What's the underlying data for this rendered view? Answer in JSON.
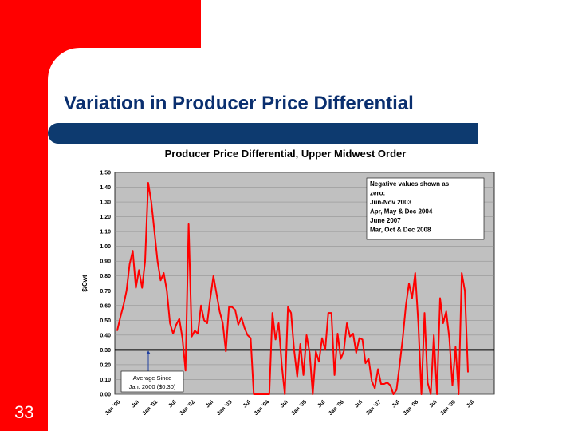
{
  "slide": {
    "title": "Variation in Producer Price Differential",
    "page_number": "33",
    "colors": {
      "red": "#ff0000",
      "navy_bar": "#0d3a6f",
      "title_text": "#0a2f6f"
    }
  },
  "chart_data": {
    "type": "line",
    "title": "Producer Price Differential, Upper Midwest Order",
    "ylabel": "$/Cwt",
    "xlabel": "",
    "ylim": [
      0,
      1.5
    ],
    "y_ticks": [
      "0.00",
      "0.10",
      "0.20",
      "0.30",
      "0.40",
      "0.50",
      "0.60",
      "0.70",
      "0.80",
      "0.90",
      "1.00",
      "1.10",
      "1.20",
      "1.30",
      "1.40",
      "1.50"
    ],
    "x_tick_labels": [
      "Jan '00",
      "Jul",
      "Jan '01",
      "Jul",
      "Jan '02",
      "Jul",
      "Jan '03",
      "Jul",
      "Jan '04",
      "Jul",
      "Jan '05",
      "Jul",
      "Jan '06",
      "Jul",
      "Jan '07",
      "Jul",
      "Jan '08",
      "Jul",
      "Jan '09",
      "Jul"
    ],
    "x_start": "Jan 2000",
    "x_end": "Dec 2009",
    "grid": true,
    "line_color": "#ff0000",
    "plot_background": "#c0c0c0",
    "average": {
      "value": 0.3,
      "label": "Average Since Jan. 2000 ($0.30)",
      "color": "#000000"
    },
    "note": {
      "lines": [
        "Negative values shown as",
        "zero:",
        "Jun-Nov 2003",
        "Apr, May & Dec 2004",
        "June 2007",
        "Mar, Oct & Dec  2008"
      ]
    },
    "series": [
      {
        "values": [
          0.43,
          0.52,
          0.6,
          0.7,
          0.88,
          0.97,
          0.72,
          0.84,
          0.72,
          0.9,
          1.43,
          1.3,
          1.1,
          0.9,
          0.77,
          0.82,
          0.7,
          0.48,
          0.41,
          0.47,
          0.51,
          0.38,
          0.16,
          1.15,
          0.39,
          0.43,
          0.41,
          0.6,
          0.5,
          0.48,
          0.65,
          0.8,
          0.68,
          0.56,
          0.48,
          0.29,
          0.59,
          0.59,
          0.57,
          0.47,
          0.52,
          0.45,
          0.4,
          0.38,
          0.0,
          0.0,
          0.0,
          0.0,
          0.0,
          0.0,
          0.55,
          0.37,
          0.48,
          0.2,
          0.0,
          0.59,
          0.55,
          0.3,
          0.12,
          0.34,
          0.13,
          0.4,
          0.28,
          0.0,
          0.29,
          0.22,
          0.38,
          0.3,
          0.55,
          0.55,
          0.13,
          0.41,
          0.24,
          0.29,
          0.48,
          0.39,
          0.41,
          0.28,
          0.38,
          0.37,
          0.21,
          0.24,
          0.09,
          0.04,
          0.17,
          0.07,
          0.07,
          0.08,
          0.06,
          0.0,
          0.03,
          0.2,
          0.38,
          0.6,
          0.75,
          0.65,
          0.82,
          0.48,
          0.0,
          0.55,
          0.08,
          0.0,
          0.4,
          0.0,
          0.65,
          0.48,
          0.56,
          0.38,
          0.06,
          0.32,
          0.0,
          0.82,
          0.7,
          0.15
        ]
      }
    ]
  }
}
